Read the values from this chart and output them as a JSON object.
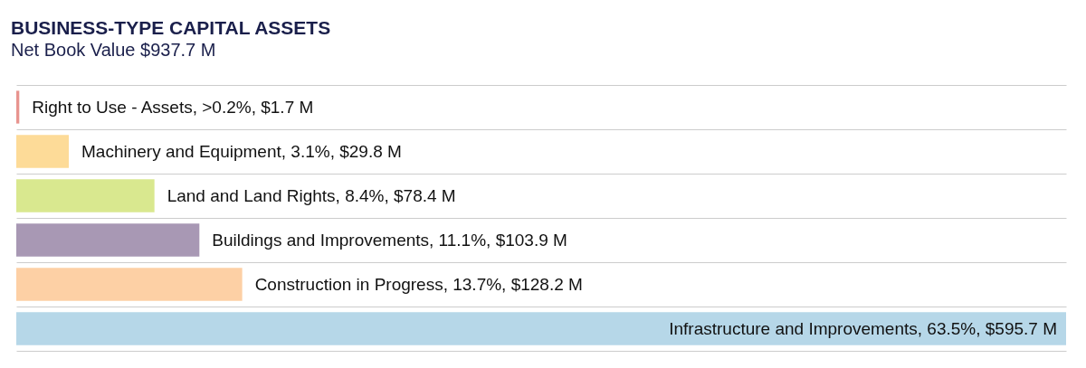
{
  "chart_data": {
    "type": "bar",
    "orientation": "horizontal",
    "title": "BUSINESS-TYPE CAPITAL ASSETS",
    "subtitle": "Net Book Value $937.7 M",
    "categories": [
      null,
      null,
      null,
      null,
      null,
      null
    ],
    "values": [
      1.7,
      29.8,
      78.4,
      103.9,
      128.2,
      595.7
    ],
    "value_labels": [
      "Right to Use - Assets, >0.2%, $1.7 M",
      "Machinery and Equipment, 3.1%, $29.8 M",
      "Land and Land Rights, 8.4%, $78.4 M",
      "Buildings and Improvements, 11.1%, $103.9 M",
      "Construction in Progress, 13.7%, $128.2 M",
      "Infrastructure and Improvements, 63.5%, $595.7 M"
    ],
    "colors": [
      "#e8948f",
      "#fddb98",
      "#d9e88f",
      "#a898b4",
      "#fdd0a5",
      "#b6d7e8"
    ],
    "grid": "y"
  }
}
